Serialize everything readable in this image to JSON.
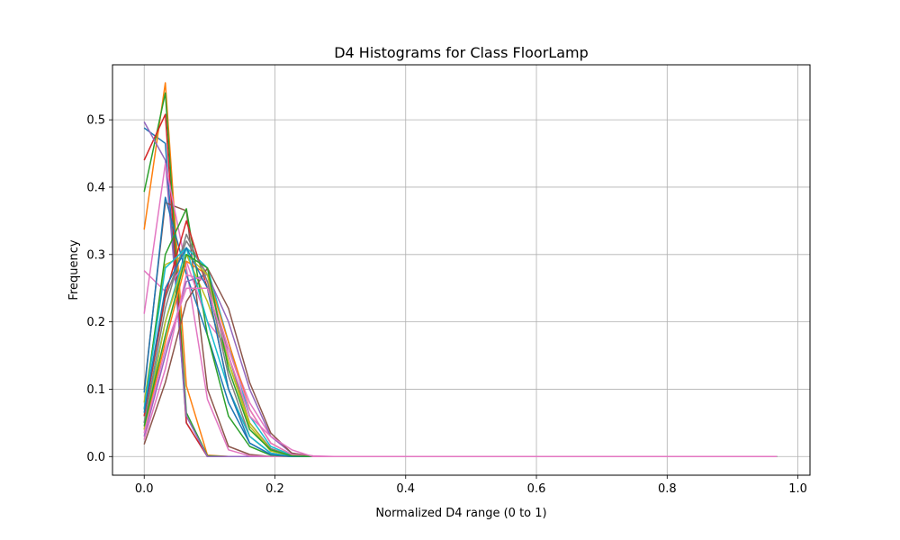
{
  "chart_data": {
    "type": "line",
    "title": "D4 Histograms for Class FloorLamp",
    "xlabel": "Normalized D4 range (0 to 1)",
    "ylabel": "Frequency",
    "xlim": [
      -0.0485,
      1.0185
    ],
    "ylim": [
      -0.0277,
      0.5817
    ],
    "xticks": [
      0.0,
      0.2,
      0.4,
      0.6,
      0.8,
      1.0
    ],
    "xtick_labels": [
      "0.0",
      "0.2",
      "0.4",
      "0.6",
      "0.8",
      "1.0"
    ],
    "yticks": [
      0.0,
      0.1,
      0.2,
      0.3,
      0.4,
      0.5
    ],
    "ytick_labels": [
      "0.0",
      "0.1",
      "0.2",
      "0.3",
      "0.4",
      "0.5"
    ],
    "grid": true,
    "x": [
      0.0,
      0.0323,
      0.0645,
      0.0968,
      0.129,
      0.1613,
      0.1935,
      0.2258,
      0.2581,
      0.2903,
      0.3226,
      0.3548,
      0.3871,
      0.4194,
      0.4516,
      0.4839,
      0.5161,
      0.5484,
      0.5806,
      0.6129,
      0.6452,
      0.6774,
      0.7097,
      0.7419,
      0.7742,
      0.8065,
      0.8387,
      0.871,
      0.9032,
      0.9355,
      0.9677
    ],
    "series": [
      {
        "color": "#1f77b4",
        "values": [
          0.488,
          0.465,
          0.05,
          0.0,
          0.0,
          0.0,
          0.0,
          0.0,
          0.0,
          0.0,
          0.0,
          0.0,
          0.0,
          0.0,
          0.0,
          0.0,
          0.0,
          0.0,
          0.0,
          0.0,
          0.0,
          0.0,
          0.0,
          0.0,
          0.0,
          0.0,
          0.0,
          0.0,
          0.0,
          0.0,
          0.0
        ]
      },
      {
        "color": "#ff7f0e",
        "values": [
          0.337,
          0.555,
          0.105,
          0.002,
          0.0,
          0.0,
          0.0,
          0.0,
          0.0,
          0.0,
          0.0,
          0.0,
          0.0,
          0.0,
          0.0,
          0.0,
          0.0,
          0.0,
          0.0,
          0.0,
          0.0,
          0.0,
          0.0,
          0.0,
          0.0,
          0.0,
          0.0,
          0.0,
          0.0,
          0.0,
          0.0
        ]
      },
      {
        "color": "#2ca02c",
        "values": [
          0.393,
          0.54,
          0.065,
          0.001,
          0.0,
          0.0,
          0.0,
          0.0,
          0.0,
          0.0,
          0.0,
          0.0,
          0.0,
          0.0,
          0.0,
          0.0,
          0.0,
          0.0,
          0.0,
          0.0,
          0.0,
          0.0,
          0.0,
          0.0,
          0.0,
          0.0,
          0.0,
          0.0,
          0.0,
          0.0,
          0.0
        ]
      },
      {
        "color": "#d62728",
        "values": [
          0.44,
          0.508,
          0.05,
          0.0,
          0.0,
          0.0,
          0.0,
          0.0,
          0.0,
          0.0,
          0.0,
          0.0,
          0.0,
          0.0,
          0.0,
          0.0,
          0.0,
          0.0,
          0.0,
          0.0,
          0.0,
          0.0,
          0.0,
          0.0,
          0.0,
          0.0,
          0.0,
          0.0,
          0.0,
          0.0,
          0.0
        ]
      },
      {
        "color": "#9467bd",
        "values": [
          0.497,
          0.44,
          0.06,
          0.0,
          0.0,
          0.0,
          0.0,
          0.0,
          0.0,
          0.0,
          0.0,
          0.0,
          0.0,
          0.0,
          0.0,
          0.0,
          0.0,
          0.0,
          0.0,
          0.0,
          0.0,
          0.0,
          0.0,
          0.0,
          0.0,
          0.0,
          0.0,
          0.0,
          0.0,
          0.0,
          0.0
        ]
      },
      {
        "color": "#8c564b",
        "values": [
          0.1,
          0.377,
          0.365,
          0.1,
          0.015,
          0.003,
          0.0,
          0.0,
          0.0,
          0.0,
          0.0,
          0.0,
          0.0,
          0.0,
          0.0,
          0.0,
          0.0,
          0.0,
          0.0,
          0.0,
          0.0,
          0.0,
          0.0,
          0.0,
          0.0,
          0.0,
          0.0,
          0.0,
          0.0,
          0.0,
          0.0
        ]
      },
      {
        "color": "#e377c2",
        "values": [
          0.276,
          0.245,
          0.29,
          0.2,
          0.16,
          0.08,
          0.03,
          0.005,
          0.001,
          0.0,
          0.0,
          0.0,
          0.0,
          0.0,
          0.0,
          0.0,
          0.0,
          0.0,
          0.0,
          0.0,
          0.0,
          0.0,
          0.0,
          0.0,
          0.0,
          0.0,
          0.0,
          0.0,
          0.0,
          0.0,
          0.0
        ]
      },
      {
        "color": "#e377c2",
        "values": [
          0.212,
          0.435,
          0.28,
          0.085,
          0.01,
          0.001,
          0.0,
          0.0,
          0.0,
          0.0,
          0.0,
          0.0,
          0.0,
          0.0,
          0.0,
          0.0,
          0.0,
          0.0,
          0.0,
          0.0,
          0.0,
          0.0,
          0.0,
          0.0,
          0.0,
          0.0,
          0.0,
          0.0,
          0.0,
          0.0,
          0.0
        ]
      },
      {
        "color": "#7f7f7f",
        "values": [
          0.06,
          0.235,
          0.32,
          0.27,
          0.15,
          0.05,
          0.012,
          0.001,
          0.0,
          0.0,
          0.0,
          0.0,
          0.0,
          0.0,
          0.0,
          0.0,
          0.0,
          0.0,
          0.0,
          0.0,
          0.0,
          0.0,
          0.0,
          0.0,
          0.0,
          0.0,
          0.0,
          0.0,
          0.0,
          0.0,
          0.0
        ]
      },
      {
        "color": "#bcbd22",
        "values": [
          0.08,
          0.285,
          0.3,
          0.23,
          0.14,
          0.05,
          0.01,
          0.001,
          0.0,
          0.0,
          0.0,
          0.0,
          0.0,
          0.0,
          0.0,
          0.0,
          0.0,
          0.0,
          0.0,
          0.0,
          0.0,
          0.0,
          0.0,
          0.0,
          0.0,
          0.0,
          0.0,
          0.0,
          0.0,
          0.0,
          0.0
        ]
      },
      {
        "color": "#17becf",
        "values": [
          0.05,
          0.2,
          0.31,
          0.28,
          0.17,
          0.06,
          0.015,
          0.002,
          0.0,
          0.0,
          0.0,
          0.0,
          0.0,
          0.0,
          0.0,
          0.0,
          0.0,
          0.0,
          0.0,
          0.0,
          0.0,
          0.0,
          0.0,
          0.0,
          0.0,
          0.0,
          0.0,
          0.0,
          0.0,
          0.0,
          0.0
        ]
      },
      {
        "color": "#1f77b4",
        "values": [
          0.095,
          0.385,
          0.27,
          0.18,
          0.08,
          0.02,
          0.003,
          0.0,
          0.0,
          0.0,
          0.0,
          0.0,
          0.0,
          0.0,
          0.0,
          0.0,
          0.0,
          0.0,
          0.0,
          0.0,
          0.0,
          0.0,
          0.0,
          0.0,
          0.0,
          0.0,
          0.0,
          0.0,
          0.0,
          0.0,
          0.0
        ]
      },
      {
        "color": "#ff7f0e",
        "values": [
          0.04,
          0.17,
          0.29,
          0.27,
          0.17,
          0.07,
          0.02,
          0.003,
          0.0,
          0.0,
          0.0,
          0.0,
          0.0,
          0.0,
          0.0,
          0.0,
          0.0,
          0.0,
          0.0,
          0.0,
          0.0,
          0.0,
          0.0,
          0.0,
          0.0,
          0.0,
          0.0,
          0.0,
          0.0,
          0.0,
          0.0
        ]
      },
      {
        "color": "#2ca02c",
        "values": [
          0.07,
          0.3,
          0.368,
          0.18,
          0.06,
          0.015,
          0.002,
          0.0,
          0.0,
          0.0,
          0.0,
          0.0,
          0.0,
          0.0,
          0.0,
          0.0,
          0.0,
          0.0,
          0.0,
          0.0,
          0.0,
          0.0,
          0.0,
          0.0,
          0.0,
          0.0,
          0.0,
          0.0,
          0.0,
          0.0,
          0.0
        ]
      },
      {
        "color": "#d62728",
        "values": [
          0.06,
          0.24,
          0.35,
          0.25,
          0.1,
          0.03,
          0.005,
          0.0,
          0.0,
          0.0,
          0.0,
          0.0,
          0.0,
          0.0,
          0.0,
          0.0,
          0.0,
          0.0,
          0.0,
          0.0,
          0.0,
          0.0,
          0.0,
          0.0,
          0.0,
          0.0,
          0.0,
          0.0,
          0.0,
          0.0,
          0.0
        ]
      },
      {
        "color": "#9467bd",
        "values": [
          0.03,
          0.15,
          0.26,
          0.27,
          0.2,
          0.1,
          0.03,
          0.005,
          0.0,
          0.0,
          0.0,
          0.0,
          0.0,
          0.0,
          0.0,
          0.0,
          0.0,
          0.0,
          0.0,
          0.0,
          0.0,
          0.0,
          0.0,
          0.0,
          0.0,
          0.0,
          0.0,
          0.0,
          0.0,
          0.0,
          0.0
        ]
      },
      {
        "color": "#8c564b",
        "values": [
          0.018,
          0.11,
          0.23,
          0.28,
          0.22,
          0.11,
          0.035,
          0.005,
          0.0,
          0.0,
          0.0,
          0.0,
          0.0,
          0.0,
          0.0,
          0.0,
          0.0,
          0.0,
          0.0,
          0.0,
          0.0,
          0.0,
          0.0,
          0.0,
          0.0,
          0.0,
          0.0,
          0.0,
          0.0,
          0.0,
          0.0
        ]
      },
      {
        "color": "#e377c2",
        "values": [
          0.025,
          0.13,
          0.27,
          0.26,
          0.16,
          0.07,
          0.02,
          0.003,
          0.0,
          0.0,
          0.0,
          0.0,
          0.0,
          0.0,
          0.0,
          0.0,
          0.0,
          0.0,
          0.0,
          0.0,
          0.0,
          0.0,
          0.0,
          0.0,
          0.0,
          0.0,
          0.0,
          0.0,
          0.0,
          0.0,
          0.0
        ]
      },
      {
        "color": "#7f7f7f",
        "values": [
          0.05,
          0.22,
          0.33,
          0.26,
          0.12,
          0.03,
          0.005,
          0.0,
          0.0,
          0.0,
          0.0,
          0.0,
          0.0,
          0.0,
          0.0,
          0.0,
          0.0,
          0.0,
          0.0,
          0.0,
          0.0,
          0.0,
          0.0,
          0.0,
          0.0,
          0.0,
          0.0,
          0.0,
          0.0,
          0.0,
          0.0
        ]
      },
      {
        "color": "#bcbd22",
        "values": [
          0.04,
          0.2,
          0.3,
          0.27,
          0.14,
          0.045,
          0.008,
          0.001,
          0.0,
          0.0,
          0.0,
          0.0,
          0.0,
          0.0,
          0.0,
          0.0,
          0.0,
          0.0,
          0.0,
          0.0,
          0.0,
          0.0,
          0.0,
          0.0,
          0.0,
          0.0,
          0.0,
          0.0,
          0.0,
          0.0,
          0.0
        ]
      },
      {
        "color": "#17becf",
        "values": [
          0.07,
          0.28,
          0.31,
          0.2,
          0.1,
          0.03,
          0.005,
          0.0,
          0.0,
          0.0,
          0.0,
          0.0,
          0.0,
          0.0,
          0.0,
          0.0,
          0.0,
          0.0,
          0.0,
          0.0,
          0.0,
          0.0,
          0.0,
          0.0,
          0.0,
          0.0,
          0.0,
          0.0,
          0.0,
          0.0,
          0.0
        ]
      },
      {
        "color": "#1f77b4",
        "values": [
          0.065,
          0.25,
          0.31,
          0.25,
          0.1,
          0.02,
          0.003,
          0.0,
          0.0,
          0.0,
          0.0,
          0.0,
          0.0,
          0.0,
          0.0,
          0.0,
          0.0,
          0.0,
          0.0,
          0.0,
          0.0,
          0.0,
          0.0,
          0.0,
          0.0,
          0.0,
          0.0,
          0.0,
          0.0,
          0.0,
          0.0
        ]
      },
      {
        "color": "#2ca02c",
        "values": [
          0.045,
          0.18,
          0.3,
          0.28,
          0.13,
          0.04,
          0.01,
          0.001,
          0.0,
          0.0,
          0.0,
          0.0,
          0.0,
          0.0,
          0.0,
          0.0,
          0.0,
          0.0,
          0.0,
          0.0,
          0.0,
          0.0,
          0.0,
          0.0,
          0.0,
          0.0,
          0.0,
          0.0,
          0.0,
          0.0,
          0.0
        ]
      },
      {
        "color": "#e377c2",
        "values": [
          0.035,
          0.16,
          0.25,
          0.25,
          0.15,
          0.06,
          0.03,
          0.01,
          0.0,
          0.0,
          0.0,
          0.0,
          0.0,
          0.0,
          0.0,
          0.0,
          0.0,
          0.0,
          0.0,
          0.0,
          0.0,
          0.0,
          0.0,
          0.0,
          0.0,
          0.0,
          0.0,
          0.0,
          0.0,
          0.0,
          0.0
        ]
      }
    ]
  }
}
